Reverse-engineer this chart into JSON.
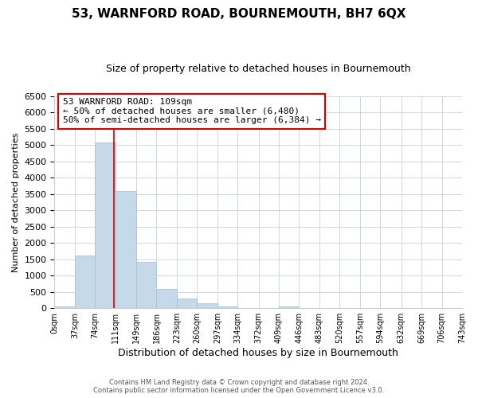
{
  "title": "53, WARNFORD ROAD, BOURNEMOUTH, BH7 6QX",
  "subtitle": "Size of property relative to detached houses in Bournemouth",
  "xlabel": "Distribution of detached houses by size in Bournemouth",
  "ylabel": "Number of detached properties",
  "bar_color": "#c5d9ea",
  "bar_edge_color": "#a8c4d8",
  "bin_edges": [
    0,
    37,
    74,
    111,
    149,
    186,
    223,
    260,
    297,
    334,
    372,
    409,
    446,
    483,
    520,
    557,
    594,
    632,
    669,
    706,
    743
  ],
  "bin_labels": [
    "0sqm",
    "37sqm",
    "74sqm",
    "111sqm",
    "149sqm",
    "186sqm",
    "223sqm",
    "260sqm",
    "297sqm",
    "334sqm",
    "372sqm",
    "409sqm",
    "446sqm",
    "483sqm",
    "520sqm",
    "557sqm",
    "594sqm",
    "632sqm",
    "669sqm",
    "706sqm",
    "743sqm"
  ],
  "counts": [
    55,
    1620,
    5080,
    3580,
    1420,
    590,
    300,
    145,
    50,
    0,
    0,
    50,
    0,
    0,
    0,
    0,
    0,
    0,
    0,
    0
  ],
  "property_line_x": 109,
  "property_line_color": "#cc0000",
  "annotation_text": "53 WARNFORD ROAD: 109sqm\n← 50% of detached houses are smaller (6,480)\n50% of semi-detached houses are larger (6,384) →",
  "annotation_box_color": "#ffffff",
  "annotation_box_edge_color": "#cc0000",
  "ylim": [
    0,
    6500
  ],
  "yticks": [
    0,
    500,
    1000,
    1500,
    2000,
    2500,
    3000,
    3500,
    4000,
    4500,
    5000,
    5500,
    6000,
    6500
  ],
  "footer_line1": "Contains HM Land Registry data © Crown copyright and database right 2024.",
  "footer_line2": "Contains public sector information licensed under the Open Government Licence v3.0.",
  "background_color": "#ffffff",
  "grid_color": "#d0d8e0"
}
